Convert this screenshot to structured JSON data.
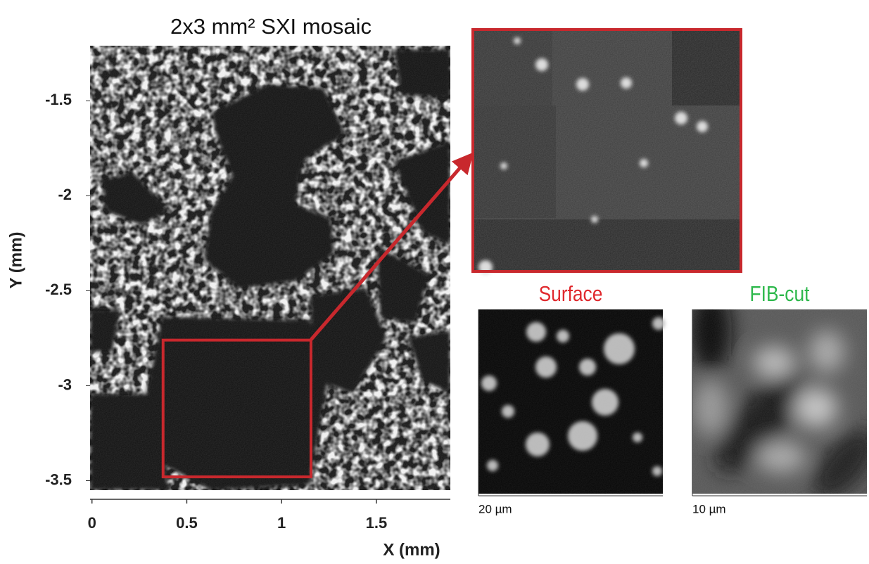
{
  "chart_data": {
    "type": "image",
    "title": "2x3 mm² SXI mosaic",
    "x_label": "X (mm)",
    "y_label": "Y (mm)",
    "xlim": [
      -0.01,
      1.89
    ],
    "xticks": [
      0,
      0.5,
      1,
      1.5
    ],
    "ylim": [
      -3.55,
      -1.21
    ],
    "yticks": [
      -1.5,
      -2,
      -2.5,
      -3,
      -3.5
    ],
    "zoom_box": {
      "x": [
        0.375,
        1.155
      ],
      "y": [
        -3.48,
        -2.76
      ],
      "color": "#c8282d"
    },
    "insets": [
      {
        "title": "Surface",
        "color": "#e0282d",
        "scale_label": "20 µm"
      },
      {
        "title": "FIB-cut",
        "color": "#2db84b",
        "scale_label": "10 µm"
      }
    ]
  }
}
